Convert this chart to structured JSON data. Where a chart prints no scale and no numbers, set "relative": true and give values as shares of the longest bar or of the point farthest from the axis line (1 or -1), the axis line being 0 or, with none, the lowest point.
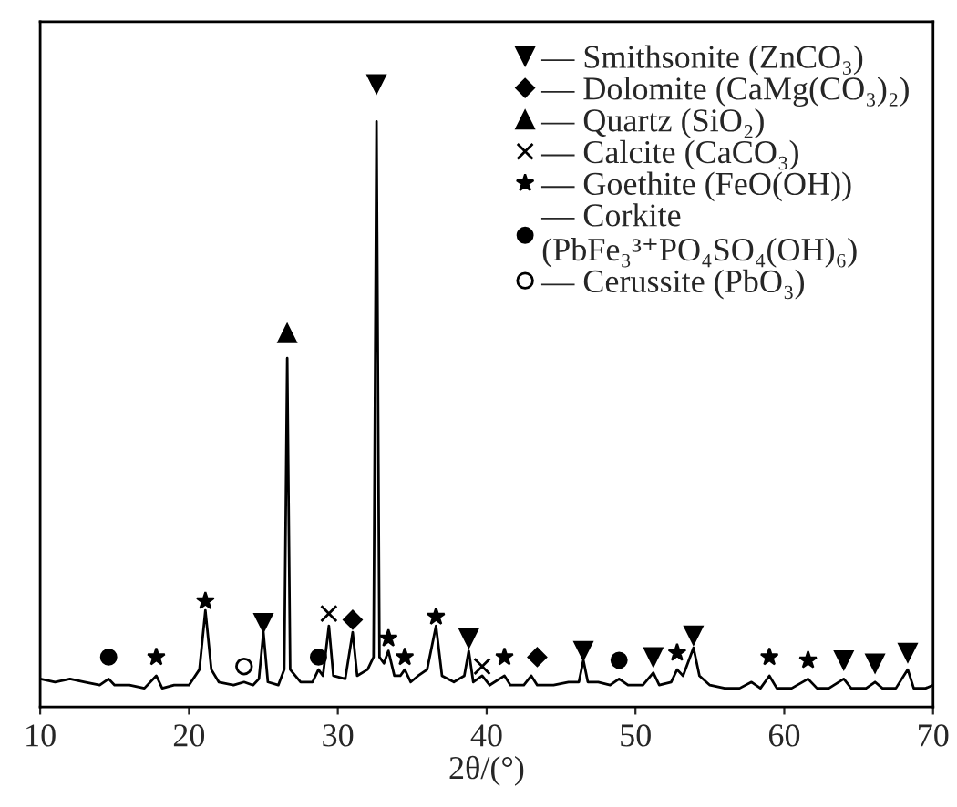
{
  "chart_data": {
    "type": "line",
    "relative": true,
    "xlabel": "2θ/(°)",
    "xlim": [
      10,
      70
    ],
    "xticks": [
      10,
      20,
      30,
      40,
      50,
      60,
      70
    ],
    "grid": false,
    "legend": "top right",
    "series": [
      {
        "color": "#000000",
        "x": [
          10,
          11,
          12,
          13,
          14,
          14.6,
          15,
          16,
          17,
          17.8,
          18.2,
          19,
          20,
          20.7,
          21.1,
          21.5,
          22,
          23,
          23.7,
          24.3,
          24.7,
          25.0,
          25.3,
          26,
          26.4,
          26.6,
          26.8,
          27.5,
          28.3,
          28.7,
          29.0,
          29.4,
          29.7,
          30.5,
          31.0,
          31.3,
          32.0,
          32.4,
          32.6,
          32.8,
          33.1,
          33.4,
          33.8,
          34.2,
          34.5,
          34.9,
          35.4,
          36.0,
          36.6,
          37.0,
          37.8,
          38.5,
          38.8,
          39.1,
          39.7,
          40.2,
          41.2,
          41.6,
          42.5,
          43.0,
          43.4,
          44.5,
          45.5,
          46.2,
          46.5,
          46.8,
          47.5,
          48.3,
          48.9,
          49.5,
          50.5,
          51.2,
          51.6,
          52.4,
          52.8,
          53.2,
          53.9,
          54.3,
          55,
          56,
          57,
          57.8,
          58.4,
          59.0,
          59.5,
          60.5,
          61.6,
          62.2,
          63,
          64.0,
          64.5,
          65.5,
          66.1,
          66.6,
          67.5,
          68.3,
          68.7,
          69.5,
          70
        ],
        "values": [
          0.045,
          0.04,
          0.045,
          0.04,
          0.035,
          0.045,
          0.035,
          0.035,
          0.03,
          0.05,
          0.03,
          0.035,
          0.035,
          0.06,
          0.155,
          0.06,
          0.04,
          0.035,
          0.04,
          0.035,
          0.045,
          0.12,
          0.04,
          0.035,
          0.06,
          0.56,
          0.06,
          0.04,
          0.04,
          0.06,
          0.05,
          0.13,
          0.05,
          0.045,
          0.12,
          0.05,
          0.06,
          0.08,
          0.94,
          0.08,
          0.07,
          0.09,
          0.05,
          0.05,
          0.06,
          0.04,
          0.05,
          0.06,
          0.13,
          0.05,
          0.04,
          0.05,
          0.09,
          0.04,
          0.05,
          0.035,
          0.05,
          0.035,
          0.035,
          0.05,
          0.035,
          0.035,
          0.04,
          0.04,
          0.075,
          0.04,
          0.04,
          0.035,
          0.045,
          0.035,
          0.035,
          0.055,
          0.035,
          0.04,
          0.06,
          0.05,
          0.095,
          0.05,
          0.035,
          0.03,
          0.03,
          0.04,
          0.03,
          0.05,
          0.03,
          0.03,
          0.045,
          0.03,
          0.03,
          0.045,
          0.03,
          0.03,
          0.04,
          0.03,
          0.03,
          0.06,
          0.03,
          0.03,
          0.035
        ]
      },
      {
        "type": "scatter",
        "name": "— Smithsonite (ZnCO₃)",
        "color": "#000000",
        "marker": "triangle_down",
        "x": [
          25.0,
          32.6,
          38.8,
          46.5,
          51.2,
          53.9,
          64.0,
          66.1,
          68.3
        ],
        "values": [
          0.135,
          1.0,
          0.11,
          0.09,
          0.08,
          0.115,
          0.075,
          0.07,
          0.087
        ]
      },
      {
        "type": "scatter",
        "name": "— Dolomite (CaMg(CO₃)₂)",
        "color": "#000000",
        "marker": "diamond",
        "x": [
          31.0,
          43.4
        ],
        "values": [
          0.14,
          0.08
        ]
      },
      {
        "type": "scatter",
        "name": "— Quartz (SiO₂)",
        "color": "#000000",
        "marker": "triangle",
        "x": [
          26.6
        ],
        "values": [
          0.6
        ]
      },
      {
        "type": "scatter",
        "name": "— Calcite (CaCO₃)",
        "color": "#000000",
        "marker": "cross",
        "x": [
          29.4,
          39.7
        ],
        "values": [
          0.15,
          0.065
        ]
      },
      {
        "type": "scatter",
        "name": "— Goethite (FeO(OH))",
        "color": "#000000",
        "marker": "star",
        "x": [
          17.8,
          21.1,
          33.4,
          34.5,
          36.6,
          41.2,
          52.8,
          59.0,
          61.6
        ],
        "values": [
          0.08,
          0.17,
          0.11,
          0.08,
          0.145,
          0.08,
          0.087,
          0.08,
          0.075
        ]
      },
      {
        "type": "scatter",
        "name": "— Corkite\n(PbFe₃³⁺PO₄SO₄(OH)₆)",
        "color": "#000000",
        "marker": "circle",
        "x": [
          14.6,
          28.7,
          48.9
        ],
        "values": [
          0.08,
          0.08,
          0.075
        ]
      },
      {
        "type": "scatter",
        "name": "— Cerussite (PbO₃)",
        "color": "#000000",
        "marker": "circle_open",
        "x": [
          23.7
        ],
        "values": [
          0.065
        ]
      }
    ]
  }
}
